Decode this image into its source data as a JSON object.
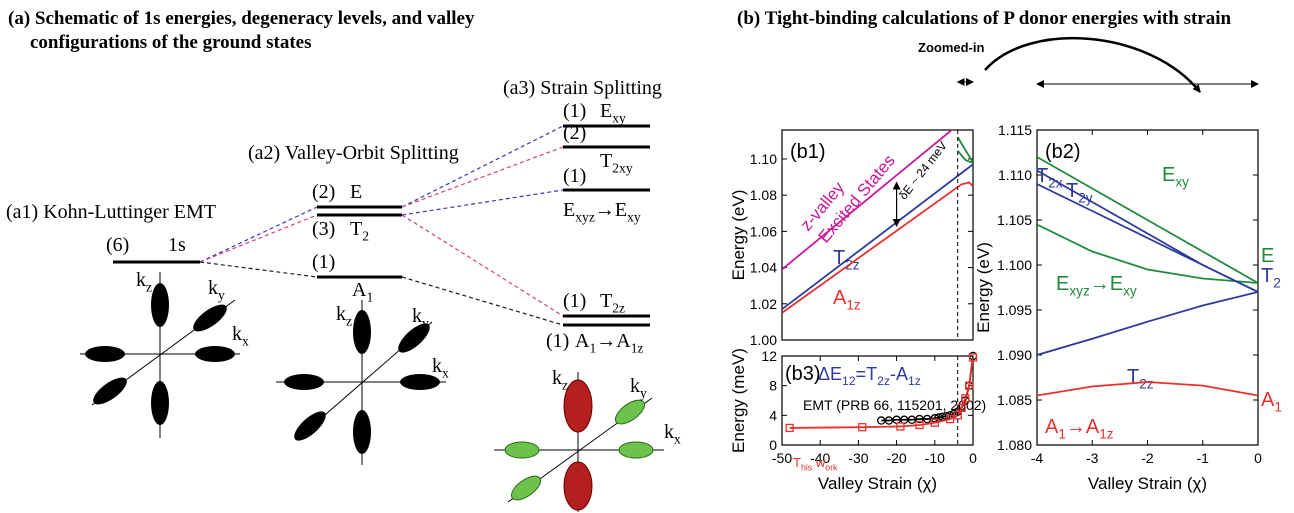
{
  "schematic": {
    "title": [
      "(a) Schematic of 1s energies, degeneracy levels,  and valley",
      "configurations of the ground states"
    ],
    "a1": {
      "title": "(a1) Kohn-Luttinger EMT",
      "levels": [
        {
          "degeneracy": "(6)",
          "label": "1s"
        }
      ]
    },
    "a2": {
      "title": "(a2) Valley-Orbit Splitting",
      "levels": [
        {
          "degeneracy": "(2)",
          "label": "E"
        },
        {
          "degeneracy": "(3)",
          "label": "T2"
        },
        {
          "degeneracy": "(1)",
          "label": "A1"
        }
      ]
    },
    "a3": {
      "title": "(a3) Strain Splitting",
      "levels": [
        {
          "degeneracy": "(1)",
          "label": "Exy"
        },
        {
          "degeneracy": "(2)",
          "label": "T2xy"
        },
        {
          "degeneracy": "(1)",
          "label": "Exyz→Exy"
        },
        {
          "degeneracy": "(1)",
          "label": "T2z"
        },
        {
          "degeneracy": "(1)",
          "label": "A1→A1z"
        }
      ]
    },
    "axes": [
      "kz",
      "ky",
      "kx"
    ]
  },
  "title_b": "(b) Tight-binding calculations of P donor energies with strain",
  "zoom_label": "Zoomed-in",
  "chart_data": [
    {
      "type": "line",
      "panel": "(b1)",
      "ylabel": "Energy (eV)",
      "xlim": [
        -50,
        0
      ],
      "ylim": [
        1.0,
        1.116
      ],
      "yticks": [
        {
          "value": 1.0,
          "label": "1.00"
        },
        1.02,
        1.04,
        1.06,
        1.08,
        {
          "value": 1.1,
          "label": "1.10"
        }
      ],
      "zoom_range": [
        -4,
        0
      ],
      "annotations": [
        "z-valley",
        "Excited States"
      ],
      "annotation_color": "#c8189c",
      "delta": {
        "text": "δE ~ 24 meV",
        "x": -20,
        "y": [
          1.063,
          1.087
        ]
      },
      "series": [
        {
          "color": "#c8189c",
          "x": [
            -50,
            -5
          ],
          "values": [
            1.039,
            1.117
          ]
        },
        {
          "name": "T2z",
          "color": "#2b3a9b",
          "x": [
            -50,
            0
          ],
          "values": [
            1.017,
            1.097
          ]
        },
        {
          "name": "A1z",
          "color": "#e6322b",
          "x": [
            -50,
            -3,
            -1,
            0
          ],
          "values": [
            1.015,
            1.086,
            1.087,
            1.085
          ]
        },
        {
          "color": "#1f8a3c",
          "x": [
            -4,
            0
          ],
          "values": [
            1.112,
            1.098
          ]
        },
        {
          "color": "#1f8a3c",
          "x": [
            -4,
            -2,
            -1,
            0
          ],
          "values": [
            1.1045,
            1.0995,
            1.0985,
            1.098
          ]
        }
      ]
    },
    {
      "type": "line",
      "panel": "(b3)",
      "subtitle": "ΔE12=T2z-A1z",
      "subtitle_color": "#2b3a9b",
      "ylabel": "Energy (meV)",
      "xlabel": "Valley Strain (χ)",
      "xlim": [
        -50,
        0
      ],
      "ylim": [
        0,
        12
      ],
      "xticks": [
        -50,
        -40,
        -30,
        -20,
        -10,
        0
      ],
      "yticks": [
        0,
        4,
        8,
        12
      ],
      "series": [
        {
          "name": "EMT (PRB 66, 115201, 2002)",
          "color": "#000000",
          "marker": "circle",
          "x": [
            -24,
            -22,
            -20,
            -18,
            -16,
            -14,
            -12,
            -10,
            -9,
            -8,
            -7,
            -6,
            -5,
            -4,
            -3,
            -2,
            -1,
            0
          ],
          "values": [
            3.3,
            3.3,
            3.4,
            3.4,
            3.4,
            3.5,
            3.5,
            3.6,
            3.7,
            3.8,
            3.9,
            4.0,
            4.2,
            4.5,
            5.0,
            6.0,
            8.0,
            12.0
          ]
        },
        {
          "name": "This work",
          "color": "#e6322b",
          "marker": "square",
          "x": [
            -48,
            -29,
            -19,
            -14,
            -10,
            -6,
            -4,
            -3,
            -2,
            -1,
            0
          ],
          "values": [
            2.3,
            2.4,
            2.5,
            2.7,
            3.0,
            3.5,
            4.0,
            5.0,
            6.3,
            8.0,
            11.8
          ]
        }
      ]
    },
    {
      "type": "line",
      "panel": "(b2)",
      "ylabel": "Energy (eV)",
      "xlabel": "Valley Strain (χ)",
      "xlim": [
        -4,
        0
      ],
      "ylim": [
        1.08,
        1.115
      ],
      "xticks": [
        -4,
        -3,
        -2,
        -1,
        0
      ],
      "yticks": [
        {
          "value": 1.08,
          "label": "1.080"
        },
        1.085,
        {
          "value": 1.09,
          "label": "1.090"
        },
        1.095,
        {
          "value": 1.1,
          "label": "1.100"
        },
        1.105,
        {
          "value": 1.11,
          "label": "1.110"
        },
        1.115
      ],
      "end_labels": [
        {
          "text": "E",
          "color": "#1f8a3c"
        },
        {
          "text": "T2",
          "color": "#2b3a9b"
        },
        {
          "text": "A1",
          "color": "#e6322b"
        }
      ],
      "series": [
        {
          "name": "Exy",
          "color": "#1f8a3c",
          "x": [
            -4,
            -3,
            -2,
            -1,
            0
          ],
          "values": [
            1.112,
            1.1085,
            1.105,
            1.1015,
            1.098
          ]
        },
        {
          "name": "Exyz→Exy",
          "color": "#1f8a3c",
          "x": [
            -4,
            -3,
            -2,
            -1,
            0
          ],
          "values": [
            1.1045,
            1.1015,
            1.0995,
            1.0985,
            1.098
          ]
        },
        {
          "name": "T2x",
          "color": "#2b3a9b",
          "x": [
            -4,
            -3,
            -2,
            -1,
            0
          ],
          "values": [
            1.1105,
            1.107,
            1.1035,
            1.1,
            1.097
          ]
        },
        {
          "name": "T2y",
          "color": "#2b3a9b",
          "x": [
            -4,
            -3,
            -2,
            -1,
            0
          ],
          "values": [
            1.109,
            1.106,
            1.103,
            1.1,
            1.097
          ]
        },
        {
          "name": "T2z",
          "color": "#2b3a9b",
          "x": [
            -4,
            -3,
            -2,
            -1,
            0
          ],
          "values": [
            1.09,
            1.0918,
            1.0937,
            1.0955,
            1.097
          ]
        },
        {
          "name": "A1→A1z",
          "color": "#e6322b",
          "x": [
            -4,
            -3,
            -2,
            -1,
            0
          ],
          "values": [
            1.0855,
            1.0865,
            1.087,
            1.0866,
            1.0855
          ]
        }
      ]
    }
  ]
}
